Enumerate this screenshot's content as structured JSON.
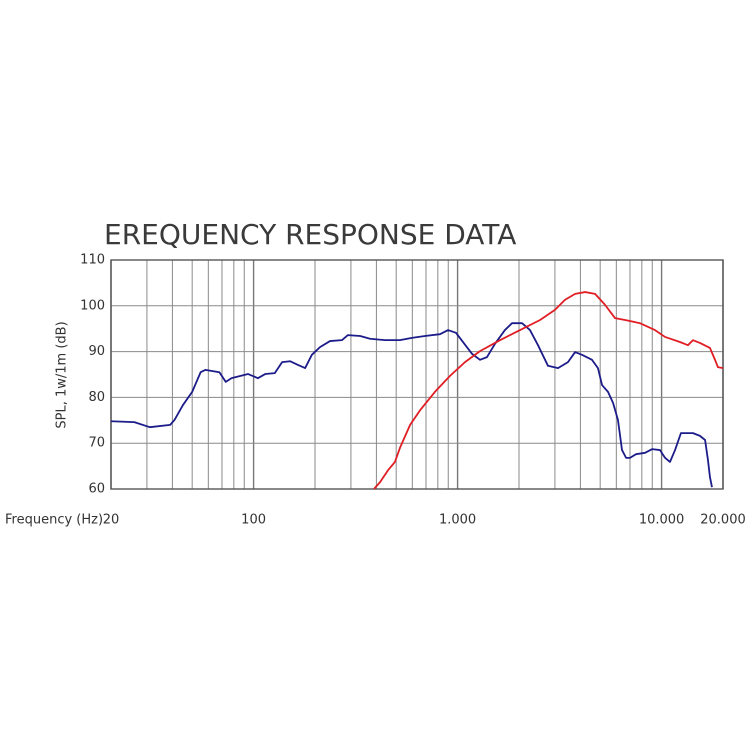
{
  "chart_data": {
    "type": "line",
    "title": "EREQUENCY RESPONSE DATA",
    "y_label": "SPL, 1w/1m (dB)",
    "x_label": "Frequency (Hz)",
    "xscale": "log",
    "xlim": [
      20,
      20000
    ],
    "xticks": [
      20,
      100,
      {
        "value": 1000,
        "label": "1.000"
      },
      {
        "value": 10000,
        "label": "10.000"
      },
      {
        "value": 20000,
        "label": "20.000"
      }
    ],
    "xminorticks": [
      30,
      40,
      50,
      60,
      70,
      80,
      90,
      200,
      300,
      400,
      500,
      600,
      700,
      800,
      900,
      2000,
      3000,
      4000,
      5000,
      6000,
      7000,
      8000,
      9000
    ],
    "ylim": [
      60,
      110
    ],
    "yticks": [
      60,
      70,
      80,
      90,
      100,
      110
    ],
    "grid": true,
    "series": [
      {
        "color": "#1c1c8a",
        "x": [
          20,
          26,
          31,
          39,
          41,
          45,
          50,
          55,
          58,
          68,
          73,
          78,
          94,
          105,
          114,
          127,
          138,
          151,
          165,
          179,
          193,
          212,
          237,
          271,
          290,
          333,
          372,
          441,
          522,
          597,
          692,
          820,
          898,
          982,
          1062,
          1178,
          1288,
          1394,
          1525,
          1706,
          1848,
          2070,
          2264,
          2478,
          2774,
          3106,
          3476,
          3768,
          4074,
          4560,
          4876,
          5106,
          5462,
          5782,
          6110,
          6398,
          6700,
          6998,
          7498,
          8298,
          8974,
          9820,
          10400,
          10990,
          11640,
          12440,
          14260,
          15420,
          16340,
          16880,
          17260,
          17660
        ],
        "values": [
          74.8,
          74.6,
          73.5,
          74.0,
          75.1,
          78.3,
          81.2,
          85.5,
          86.0,
          85.5,
          83.4,
          84.2,
          85.1,
          84.2,
          85.1,
          85.3,
          87.7,
          87.9,
          87.1,
          86.4,
          89.3,
          91.0,
          92.3,
          92.5,
          93.6,
          93.4,
          92.8,
          92.5,
          92.5,
          93.0,
          93.4,
          93.8,
          94.7,
          94.1,
          92.1,
          89.5,
          88.2,
          88.8,
          91.7,
          94.7,
          96.2,
          96.2,
          94.7,
          91.4,
          86.9,
          86.4,
          87.7,
          89.9,
          89.3,
          88.2,
          86.4,
          82.7,
          81.2,
          78.8,
          75.1,
          68.5,
          66.8,
          66.8,
          67.6,
          67.9,
          68.7,
          68.5,
          66.8,
          65.9,
          68.5,
          72.2,
          72.2,
          71.6,
          70.7,
          66.3,
          62.6,
          60.4
        ]
      },
      {
        "color": "#e01e24",
        "x": [
          389,
          417,
          456,
          493,
          522,
          585,
          655,
          774,
          918,
          1087,
          1288,
          1614,
          2024,
          2536,
          3000,
          3358,
          3768,
          4218,
          4720,
          5284,
          5916,
          6622,
          7836,
          9284,
          10400,
          12300,
          13460,
          14260,
          15420,
          17260,
          18280,
          18880,
          20000
        ],
        "values": [
          60.0,
          61.5,
          64.1,
          65.9,
          69.0,
          74.0,
          77.2,
          81.2,
          84.7,
          87.7,
          90.1,
          92.5,
          94.7,
          96.9,
          99.1,
          101.3,
          102.6,
          103.0,
          102.6,
          100.2,
          97.3,
          96.9,
          96.2,
          94.7,
          93.2,
          92.1,
          91.4,
          92.5,
          91.9,
          90.8,
          88.2,
          86.6,
          86.4
        ]
      }
    ]
  }
}
